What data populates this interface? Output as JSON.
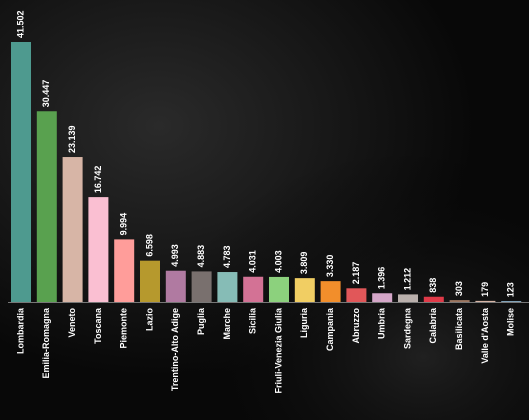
{
  "chart_data": {
    "type": "bar",
    "categories": [
      "Lombardia",
      "Emilia-Romagna",
      "Veneto",
      "Toscana",
      "Piemonte",
      "Lazio",
      "Trentino-Alto Adige",
      "Puglia",
      "Marche",
      "Sicilia",
      "Friuli-Venezia Giulia",
      "Liguria",
      "Campania",
      "Abruzzo",
      "Umbria",
      "Sardegna",
      "Calabria",
      "Basilicata",
      "Valle d'Aosta",
      "Molise"
    ],
    "values": [
      41502,
      30447,
      23139,
      16742,
      9994,
      6598,
      4993,
      4883,
      4783,
      4031,
      4003,
      3809,
      3330,
      2187,
      1396,
      1212,
      838,
      303,
      179,
      123
    ],
    "value_labels": [
      "41.502",
      "30.447",
      "23.139",
      "16.742",
      "9.994",
      "6.598",
      "4.993",
      "4.883",
      "4.783",
      "4.031",
      "4.003",
      "3.809",
      "3.330",
      "2.187",
      "1.396",
      "1.212",
      "838",
      "303",
      "179",
      "123"
    ],
    "colors": [
      "#4e9a8f",
      "#59a14f",
      "#d7b5a6",
      "#fabfd2",
      "#ff9d9a",
      "#b6992d",
      "#b07aa1",
      "#79706e",
      "#86bcb6",
      "#d37295",
      "#8cd17d",
      "#f1ce63",
      "#f28e2b",
      "#e15759",
      "#d4a6c8",
      "#bab0ac",
      "#e03a48",
      "#9d7660",
      "#d7b5a6",
      "#a0cbe8"
    ]
  }
}
